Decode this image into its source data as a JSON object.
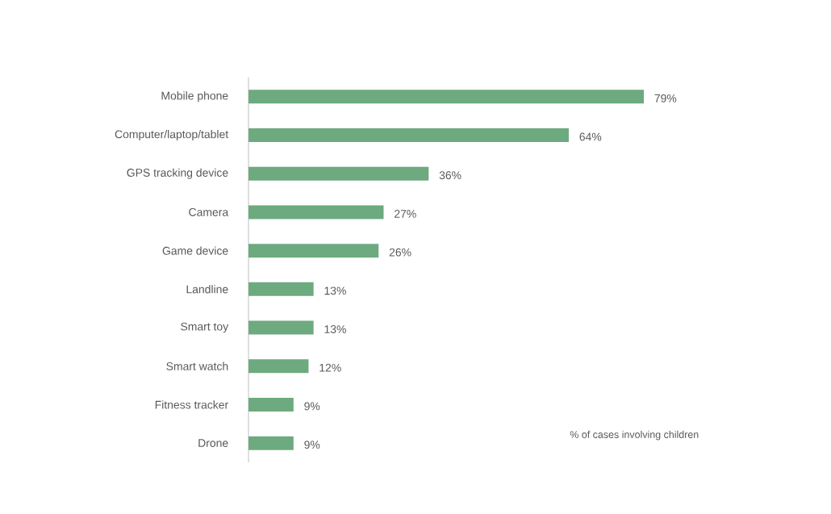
{
  "chart_data": {
    "type": "bar",
    "orientation": "horizontal",
    "categories": [
      "Mobile phone",
      "Computer/laptop/tablet",
      "GPS tracking device",
      "Camera",
      "Game device",
      "Landline",
      "Smart toy",
      "Smart watch",
      "Fitness tracker",
      "Drone"
    ],
    "values": [
      79,
      64,
      36,
      27,
      26,
      13,
      13,
      12,
      9,
      9
    ],
    "value_labels": [
      "79%",
      "64%",
      "36%",
      "27%",
      "26%",
      "13%",
      "13%",
      "12%",
      "9%",
      "9%"
    ],
    "color": "#6daa7f",
    "annotations": [
      "% of cases involving children"
    ]
  }
}
